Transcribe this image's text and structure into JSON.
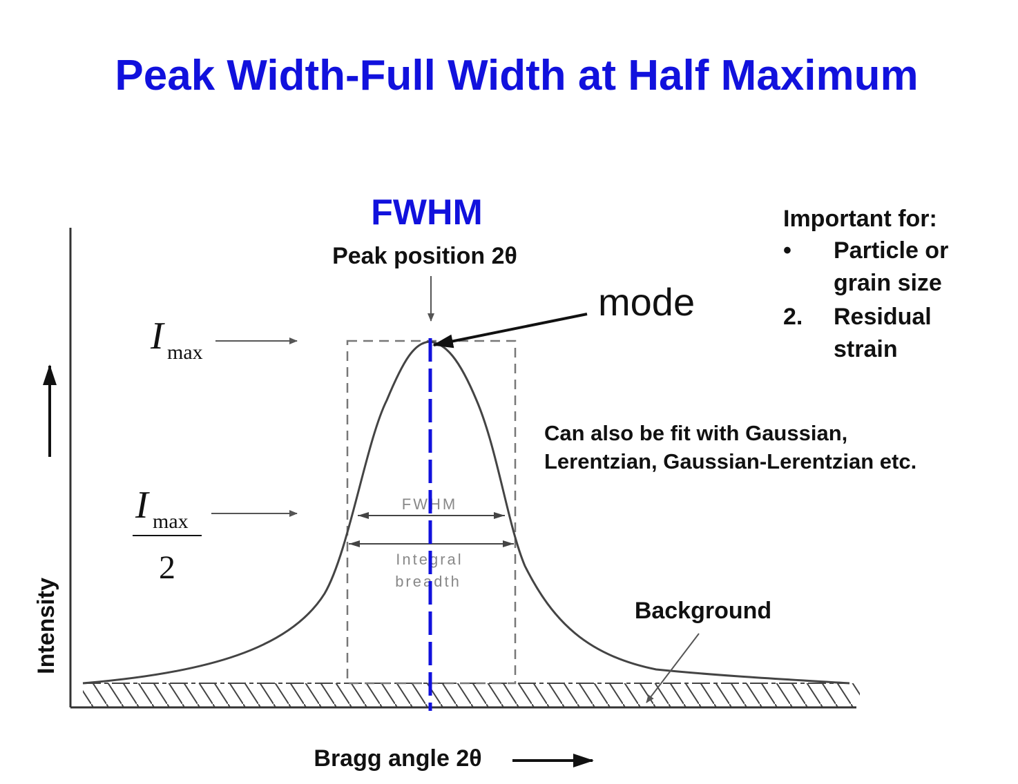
{
  "title": "Peak Width-Full Width at Half Maximum",
  "fwhm_heading": "FWHM",
  "peak_position_label": "Peak position 2θ",
  "mode_label": "mode",
  "imax_symbol": "I",
  "imax_subscript": "max",
  "half_denominator": "2",
  "inner_fwhm_label": "FWHM",
  "integral_label_line1": "Integral",
  "integral_label_line2": "breadth",
  "background_label": "Background",
  "x_axis_label": "Bragg angle 2θ",
  "y_axis_label": "Intensity",
  "important": {
    "heading": "Important for:",
    "item1_marker": "•",
    "item1_line1": "Particle or",
    "item1_line2": "grain size",
    "item2_marker": "2.",
    "item2_line1": "Residual",
    "item2_line2": "strain"
  },
  "fit_note": {
    "line1": "Can also be fit with Gaussian,",
    "line2": "Lerentzian, Gaussian-Lerentzian etc."
  },
  "colors": {
    "title": "#1111dd",
    "mode_line": "#1111dd",
    "curve": "#444444",
    "text": "#111111"
  }
}
